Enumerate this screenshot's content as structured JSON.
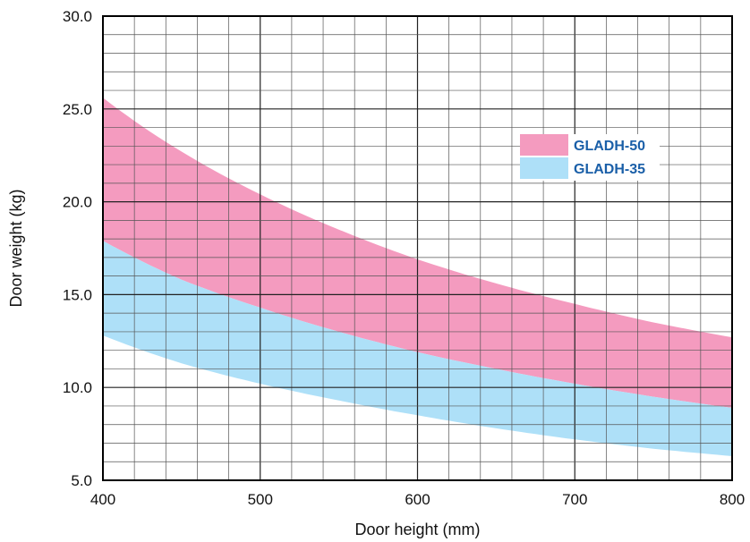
{
  "chart_data": {
    "type": "area",
    "title": "",
    "xlabel": "Door height (mm)",
    "ylabel": "Door weight (kg)",
    "xlim": [
      400,
      800
    ],
    "ylim": [
      5.0,
      30.0
    ],
    "xticks": [
      400,
      500,
      600,
      700,
      800
    ],
    "xtick_labels": [
      "400",
      "500",
      "600",
      "700",
      "800"
    ],
    "yticks": [
      5.0,
      10.0,
      15.0,
      20.0,
      25.0,
      30.0
    ],
    "ytick_labels": [
      "5.0",
      "10.0",
      "15.0",
      "20.0",
      "25.0",
      "30.0"
    ],
    "grid": true,
    "legend_position": "right",
    "series": [
      {
        "name": "GLADH-50",
        "color": "#f49bbf",
        "x": [
          400,
          450,
          500,
          550,
          600,
          650,
          700,
          750,
          800
        ],
        "lower": [
          17.9,
          15.8,
          14.3,
          13.0,
          11.9,
          11.0,
          10.2,
          9.5,
          8.9
        ],
        "upper": [
          25.6,
          22.7,
          20.4,
          18.5,
          16.9,
          15.6,
          14.5,
          13.5,
          12.7
        ]
      },
      {
        "name": "GLADH-35",
        "color": "#aee0f8",
        "x": [
          400,
          450,
          500,
          550,
          600,
          650,
          700,
          750,
          800
        ],
        "lower": [
          12.8,
          11.3,
          10.2,
          9.3,
          8.5,
          7.8,
          7.2,
          6.7,
          6.3
        ],
        "upper": [
          17.9,
          15.8,
          14.3,
          13.0,
          11.9,
          11.0,
          10.2,
          9.5,
          8.9
        ]
      }
    ]
  }
}
